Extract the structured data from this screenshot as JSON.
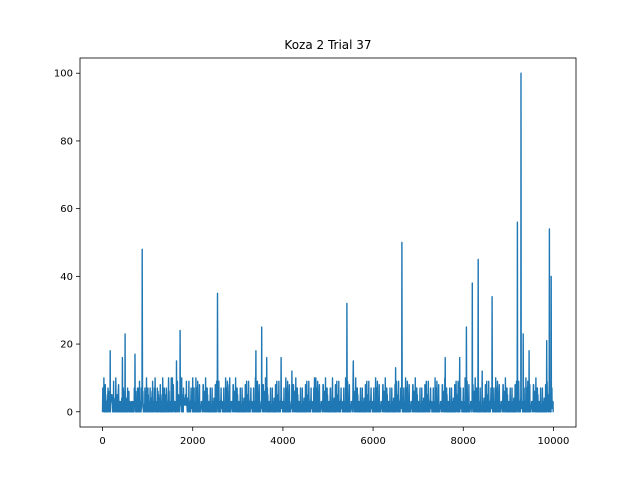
{
  "chart_data": {
    "type": "line",
    "title": "Koza 2 Trial 37",
    "xlabel": "",
    "ylabel": "",
    "xlim": [
      -500,
      10500
    ],
    "ylim": [
      -4.5,
      104.5
    ],
    "xticks": [
      0,
      2000,
      4000,
      6000,
      8000,
      10000
    ],
    "xtick_labels": [
      "0",
      "2000",
      "4000",
      "6000",
      "8000",
      "10000"
    ],
    "yticks": [
      0,
      20,
      40,
      60,
      80,
      100
    ],
    "ytick_labels": [
      "0",
      "20",
      "40",
      "60",
      "80",
      "100"
    ],
    "grid": false,
    "series": [
      {
        "color": "#1f77b4",
        "x_range": [
          0,
          10000
        ],
        "baseline_noise": "dense values mostly between 0 and 10",
        "peaks": [
          {
            "x": 30,
            "y": 10
          },
          {
            "x": 170,
            "y": 18
          },
          {
            "x": 440,
            "y": 16
          },
          {
            "x": 500,
            "y": 23
          },
          {
            "x": 720,
            "y": 17
          },
          {
            "x": 880,
            "y": 48
          },
          {
            "x": 1280,
            "y": 8
          },
          {
            "x": 1640,
            "y": 15
          },
          {
            "x": 1720,
            "y": 24
          },
          {
            "x": 2000,
            "y": 10
          },
          {
            "x": 2550,
            "y": 35
          },
          {
            "x": 2820,
            "y": 10
          },
          {
            "x": 3400,
            "y": 18
          },
          {
            "x": 3530,
            "y": 25
          },
          {
            "x": 3640,
            "y": 16
          },
          {
            "x": 3960,
            "y": 16
          },
          {
            "x": 4200,
            "y": 12
          },
          {
            "x": 4700,
            "y": 10
          },
          {
            "x": 5100,
            "y": 10
          },
          {
            "x": 5420,
            "y": 32
          },
          {
            "x": 5560,
            "y": 15
          },
          {
            "x": 6500,
            "y": 13
          },
          {
            "x": 6640,
            "y": 50
          },
          {
            "x": 7600,
            "y": 16
          },
          {
            "x": 7920,
            "y": 16
          },
          {
            "x": 8070,
            "y": 25
          },
          {
            "x": 8200,
            "y": 38
          },
          {
            "x": 8330,
            "y": 45
          },
          {
            "x": 8420,
            "y": 12
          },
          {
            "x": 8640,
            "y": 34
          },
          {
            "x": 9200,
            "y": 56
          },
          {
            "x": 9280,
            "y": 100
          },
          {
            "x": 9330,
            "y": 23
          },
          {
            "x": 9460,
            "y": 18
          },
          {
            "x": 9850,
            "y": 21
          },
          {
            "x": 9910,
            "y": 54
          },
          {
            "x": 9950,
            "y": 40
          }
        ]
      }
    ]
  }
}
